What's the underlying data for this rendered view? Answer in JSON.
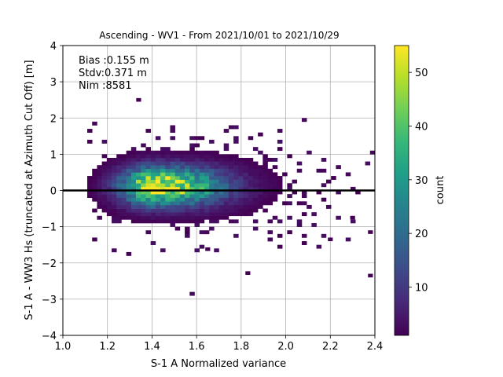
{
  "chart_data": {
    "type": "heatmap",
    "subtype": "2d-histogram",
    "title": "Ascending - WV1 - From 2021/10/01 to 2021/10/29",
    "xlabel": "S-1 A Normalized variance",
    "ylabel": "S-1 A - WW3 Hs (truncated at Azimuth Cut Off) [m]",
    "xlim": [
      1.0,
      2.4
    ],
    "ylim": [
      -4,
      4
    ],
    "x_ticks": [
      "1.0",
      "1.2",
      "1.4",
      "1.6",
      "1.8",
      "2.0",
      "2.2",
      "2.4"
    ],
    "y_ticks": [
      "4",
      "3",
      "2",
      "1",
      "0",
      "−1",
      "−2",
      "−3",
      "−4"
    ],
    "grid": true,
    "reference_line_y": 0,
    "annotations": [
      "Bias :0.155 m",
      "Stdv:0.371 m",
      "Nim :8581"
    ],
    "colorbar": {
      "label": "count",
      "min": 1,
      "max": 55,
      "ticks": [
        "10",
        "20",
        "30",
        "40",
        "50"
      ],
      "colormap": "viridis"
    },
    "density_model": {
      "bins_x": 64,
      "bins_y": 80,
      "mode_x": 1.42,
      "mode_y": 0.12,
      "peak_count": 55
    }
  }
}
